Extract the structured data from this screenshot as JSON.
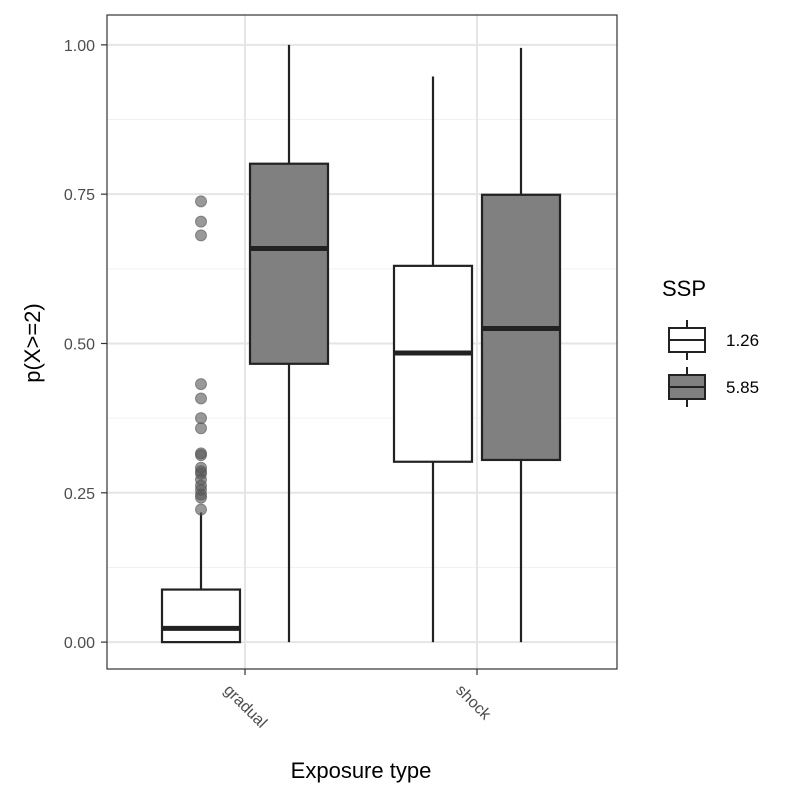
{
  "chart_data": {
    "type": "boxplot",
    "xlabel": "Exposure type",
    "ylabel": "p(X>=2)",
    "ylim": [
      -0.045,
      1.05
    ],
    "yticks": [
      {
        "value": 0.0,
        "label": "0.00"
      },
      {
        "value": 0.25,
        "label": "0.25"
      },
      {
        "value": 0.5,
        "label": "0.50"
      },
      {
        "value": 0.75,
        "label": "0.75"
      },
      {
        "value": 1.0,
        "label": "1.00"
      }
    ],
    "categories": [
      "gradual",
      "shock"
    ],
    "grid": true,
    "legend": {
      "title": "SSP",
      "placement": "right",
      "entries": [
        {
          "label": "1.26",
          "color": "#ffffff"
        },
        {
          "label": "5.85",
          "color": "#808080"
        }
      ]
    },
    "series": [
      {
        "name": "1.26",
        "color": "#ffffff",
        "boxes": [
          {
            "category": "gradual",
            "min": 0.0,
            "q1": 0.0,
            "median": 0.023,
            "q3": 0.088,
            "max": 0.217,
            "outliers": [
              0.738,
              0.704,
              0.681,
              0.432,
              0.408,
              0.375,
              0.358,
              0.316,
              0.313,
              0.292,
              0.286,
              0.282,
              0.272,
              0.262,
              0.255,
              0.247,
              0.242,
              0.222
            ]
          },
          {
            "category": "shock",
            "min": 0.0,
            "q1": 0.302,
            "median": 0.484,
            "q3": 0.63,
            "max": 0.947,
            "outliers": []
          }
        ]
      },
      {
        "name": "5.85",
        "color": "#808080",
        "boxes": [
          {
            "category": "gradual",
            "min": 0.0,
            "q1": 0.466,
            "median": 0.659,
            "q3": 0.801,
            "max": 1.0,
            "outliers": []
          },
          {
            "category": "shock",
            "min": 0.0,
            "q1": 0.305,
            "median": 0.525,
            "q3": 0.749,
            "max": 0.995,
            "outliers": []
          }
        ]
      }
    ]
  }
}
